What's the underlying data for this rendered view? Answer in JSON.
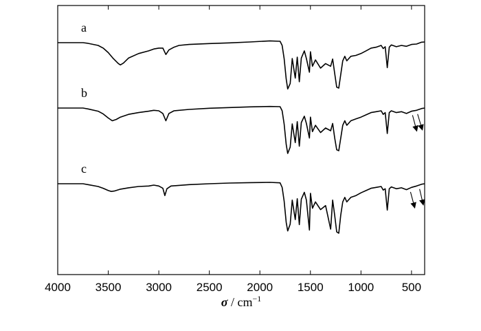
{
  "chart_data": {
    "type": "line",
    "title": "",
    "xlabel_symbol": "σ",
    "xlabel_unit": "cm",
    "xlabel_exponent": "−1",
    "xlim": [
      4000,
      370
    ],
    "x_reversed": true,
    "y_ticks_shown": false,
    "grid": false,
    "x_ticks": [
      4000,
      3500,
      3000,
      2500,
      2000,
      1500,
      1000,
      500
    ],
    "x_tick_labels": [
      "4000",
      "3500",
      "3000",
      "2500",
      "2000",
      "1500",
      "1000",
      "500"
    ],
    "series": [
      {
        "name": "a",
        "x": [
          4000,
          3750,
          3700,
          3600,
          3550,
          3500,
          3450,
          3400,
          3380,
          3350,
          3300,
          3200,
          3100,
          3050,
          3000,
          2960,
          2930,
          2900,
          2850,
          2800,
          2700,
          2500,
          2300,
          2100,
          1900,
          1800,
          1780,
          1760,
          1740,
          1725,
          1700,
          1680,
          1650,
          1630,
          1610,
          1590,
          1560,
          1540,
          1510,
          1500,
          1480,
          1450,
          1400,
          1350,
          1300,
          1280,
          1260,
          1240,
          1220,
          1200,
          1180,
          1160,
          1140,
          1100,
          1050,
          1000,
          950,
          900,
          850,
          800,
          780,
          760,
          740,
          720,
          700,
          650,
          600,
          550,
          500,
          450,
          400,
          370
        ],
        "y": [
          0.0,
          0.0,
          -0.15,
          -0.6,
          -1.2,
          -2.2,
          -3.5,
          -4.6,
          -4.9,
          -4.5,
          -3.4,
          -2.4,
          -1.8,
          -1.4,
          -1.2,
          -1.2,
          -2.6,
          -1.6,
          -1.0,
          -0.6,
          -0.4,
          -0.2,
          -0.05,
          0.15,
          0.4,
          0.3,
          -0.6,
          -3.5,
          -8.0,
          -10.2,
          -9.0,
          -3.5,
          -7.8,
          -3.2,
          -8.6,
          -3.4,
          -1.8,
          -3.5,
          -6.5,
          -2.0,
          -5.2,
          -3.8,
          -5.6,
          -4.6,
          -5.2,
          -3.6,
          -6.8,
          -9.8,
          -10.0,
          -7.0,
          -4.0,
          -3.0,
          -4.0,
          -3.0,
          -2.8,
          -2.4,
          -1.8,
          -1.2,
          -1.0,
          -0.6,
          -1.3,
          -0.9,
          -5.5,
          -1.0,
          -0.5,
          -0.9,
          -0.6,
          -0.8,
          -0.4,
          -0.3,
          0.1,
          0.15
        ]
      },
      {
        "name": "b",
        "x": [
          4000,
          3750,
          3700,
          3600,
          3550,
          3500,
          3460,
          3420,
          3380,
          3300,
          3200,
          3100,
          3050,
          3000,
          2960,
          2930,
          2900,
          2850,
          2700,
          2500,
          2300,
          2100,
          1900,
          1800,
          1780,
          1760,
          1740,
          1725,
          1700,
          1680,
          1650,
          1630,
          1610,
          1590,
          1560,
          1540,
          1510,
          1500,
          1480,
          1450,
          1400,
          1350,
          1300,
          1280,
          1260,
          1240,
          1220,
          1200,
          1180,
          1160,
          1140,
          1100,
          1050,
          1000,
          950,
          900,
          850,
          800,
          780,
          760,
          740,
          720,
          700,
          650,
          600,
          550,
          500,
          450,
          400,
          370
        ],
        "y": [
          0.0,
          0.0,
          -0.2,
          -0.7,
          -1.3,
          -2.2,
          -2.8,
          -2.5,
          -2.0,
          -1.4,
          -1.0,
          -0.7,
          -0.5,
          -0.6,
          -1.2,
          -2.8,
          -1.2,
          -0.6,
          -0.3,
          -0.05,
          0.1,
          0.25,
          0.35,
          0.3,
          -0.6,
          -3.5,
          -8.0,
          -10.0,
          -8.6,
          -3.5,
          -7.6,
          -3.0,
          -8.4,
          -3.2,
          -1.8,
          -3.4,
          -6.6,
          -2.0,
          -5.2,
          -3.8,
          -5.4,
          -4.4,
          -5.0,
          -3.4,
          -6.6,
          -9.2,
          -9.4,
          -6.6,
          -3.8,
          -2.8,
          -3.8,
          -2.8,
          -2.4,
          -2.0,
          -1.5,
          -1.0,
          -0.8,
          -0.6,
          -1.4,
          -1.0,
          -5.6,
          -1.0,
          -0.6,
          -1.0,
          -0.8,
          -1.2,
          -0.7,
          -0.5,
          -0.1,
          0.0
        ]
      },
      {
        "name": "c",
        "x": [
          4000,
          3750,
          3700,
          3600,
          3550,
          3500,
          3470,
          3440,
          3380,
          3300,
          3200,
          3100,
          3050,
          3000,
          2960,
          2940,
          2920,
          2880,
          2700,
          2500,
          2300,
          2100,
          1900,
          1800,
          1780,
          1760,
          1740,
          1725,
          1700,
          1680,
          1650,
          1630,
          1610,
          1590,
          1560,
          1540,
          1510,
          1500,
          1480,
          1450,
          1400,
          1350,
          1300,
          1280,
          1260,
          1240,
          1220,
          1200,
          1180,
          1160,
          1140,
          1100,
          1050,
          1000,
          950,
          900,
          850,
          800,
          780,
          760,
          740,
          720,
          700,
          650,
          600,
          550,
          500,
          450,
          400,
          370
        ],
        "y": [
          0.0,
          0.0,
          -0.2,
          -0.6,
          -1.0,
          -1.5,
          -1.7,
          -1.6,
          -1.2,
          -0.9,
          -0.6,
          -0.5,
          -0.3,
          -0.5,
          -1.0,
          -2.6,
          -1.1,
          -0.5,
          -0.2,
          0.0,
          0.15,
          0.25,
          0.3,
          0.2,
          -0.8,
          -3.8,
          -8.5,
          -10.4,
          -8.9,
          -3.6,
          -7.9,
          -3.3,
          -9.0,
          -3.4,
          -1.9,
          -3.6,
          -10.2,
          -2.1,
          -5.4,
          -4.0,
          -5.7,
          -4.8,
          -10.0,
          -3.6,
          -7.0,
          -10.6,
          -10.9,
          -6.9,
          -4.0,
          -3.0,
          -4.0,
          -3.0,
          -2.6,
          -2.0,
          -1.5,
          -1.0,
          -0.8,
          -0.6,
          -1.4,
          -1.1,
          -5.8,
          -1.1,
          -0.7,
          -1.1,
          -0.9,
          -1.3,
          -0.8,
          -0.5,
          -0.1,
          0.0
        ]
      }
    ],
    "arrows": [
      {
        "series": "b",
        "from_x": 490,
        "to_x": 450
      },
      {
        "series": "b",
        "from_x": 440,
        "to_x": 395
      },
      {
        "series": "c",
        "from_x": 510,
        "to_x": 470
      },
      {
        "series": "c",
        "from_x": 420,
        "to_x": 385
      }
    ]
  }
}
